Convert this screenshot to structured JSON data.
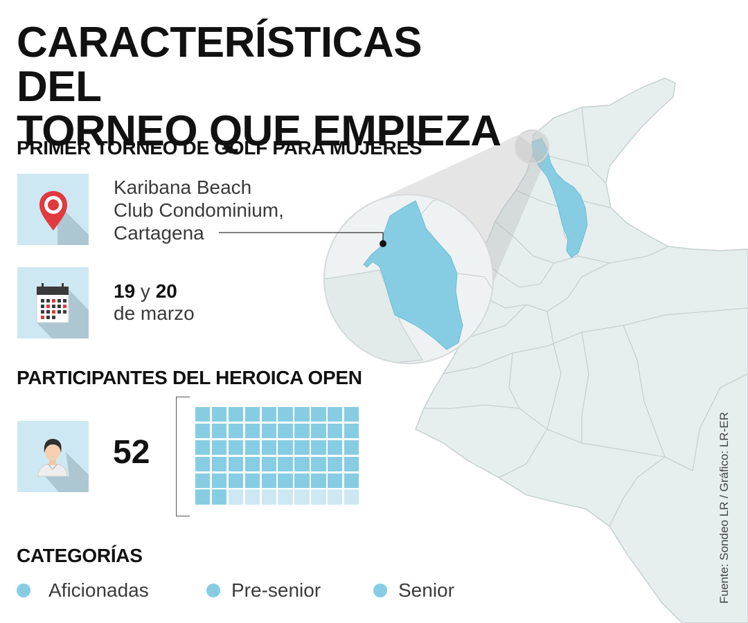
{
  "title": [
    "CARACTERÍSTICAS DEL",
    "TORNEO QUE EMPIEZA"
  ],
  "sections": {
    "tournament": "PRIMER TORNEO DE GOLF PARA MUJERES",
    "participants": "PARTICIPANTES DEL HEROICA OPEN",
    "categories": "CATEGORÍAS"
  },
  "location": {
    "icon": "location-pin-icon",
    "lines": [
      "Karibana Beach",
      "Club Condominium,",
      "Cartagena"
    ]
  },
  "dates": {
    "icon": "calendar-icon",
    "day1": "19",
    "connector": " y ",
    "day2": "20",
    "month": "de marzo"
  },
  "participants": {
    "icon": "person-icon",
    "count": "52",
    "total_cells": 60,
    "filled_cells": 52
  },
  "categories": [
    "Aficionadas",
    "Pre-senior",
    "Senior"
  ],
  "source": "Fuente: Sondeo LR / Gráfico: LR-ER",
  "colors": {
    "highlight": "#86cde4",
    "icon_bg": "#cde8f2",
    "map_fill": "#e6eeee",
    "map_stroke": "#c3cccc",
    "pin_red": "#e0393e"
  }
}
